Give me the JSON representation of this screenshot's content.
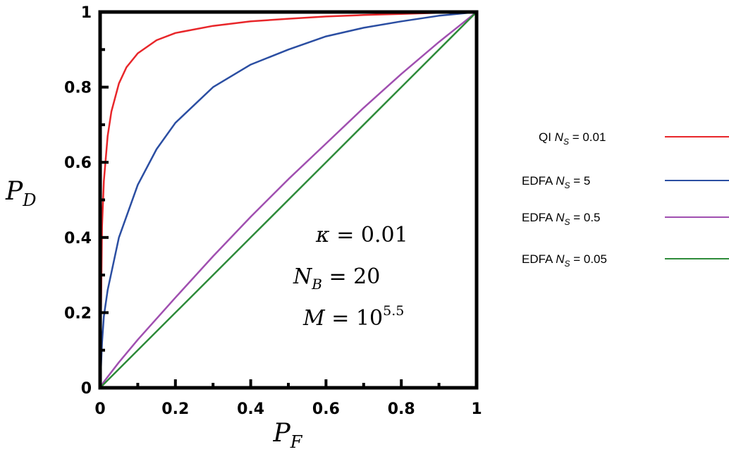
{
  "chart_data": {
    "type": "line",
    "xlabel": "P",
    "xlabel_sub": "F",
    "ylabel": "P",
    "ylabel_sub": "D",
    "xlim": [
      0,
      1
    ],
    "ylim": [
      0,
      1
    ],
    "x_ticks": [
      "0",
      "0.2",
      "0.4",
      "0.6",
      "0.8",
      "1"
    ],
    "y_ticks": [
      "0",
      "0.2",
      "0.4",
      "0.6",
      "0.8",
      "1"
    ],
    "grid": false,
    "legend_position": "right, outside plot",
    "annotations": [
      {
        "symbol": "κ",
        "relation": " = ",
        "value": "0.01"
      },
      {
        "symbol": "N",
        "sub": "B",
        "relation": " = ",
        "value": "20"
      },
      {
        "symbol": "M",
        "relation": " = ",
        "value": "10",
        "sup": "5.5"
      }
    ],
    "series": [
      {
        "legend_prefix": "QI ",
        "legend_symbol": "N",
        "legend_sub": "S",
        "legend_value": " = 0.01",
        "color": "#e8262a",
        "x": [
          0,
          0.005,
          0.01,
          0.02,
          0.03,
          0.05,
          0.07,
          0.1,
          0.15,
          0.2,
          0.3,
          0.4,
          0.5,
          0.6,
          0.7,
          0.8,
          0.9,
          1
        ],
        "y": [
          0,
          0.43,
          0.55,
          0.67,
          0.735,
          0.81,
          0.853,
          0.89,
          0.925,
          0.944,
          0.963,
          0.975,
          0.982,
          0.988,
          0.992,
          0.995,
          0.998,
          1
        ]
      },
      {
        "legend_prefix": "EDFA ",
        "legend_symbol": "N",
        "legend_sub": "S",
        "legend_value": " = 5",
        "color": "#2b4ea2",
        "x": [
          0,
          0.005,
          0.01,
          0.02,
          0.05,
          0.1,
          0.15,
          0.2,
          0.3,
          0.4,
          0.5,
          0.6,
          0.7,
          0.8,
          0.9,
          1
        ],
        "y": [
          0,
          0.12,
          0.19,
          0.26,
          0.4,
          0.54,
          0.635,
          0.705,
          0.8,
          0.86,
          0.9,
          0.935,
          0.958,
          0.975,
          0.99,
          1
        ]
      },
      {
        "legend_prefix": "EDFA ",
        "legend_symbol": "N",
        "legend_sub": "S",
        "legend_value": " = 0.5",
        "color": "#a04fb0",
        "x": [
          0,
          0.01,
          0.05,
          0.1,
          0.2,
          0.3,
          0.4,
          0.5,
          0.6,
          0.7,
          0.8,
          0.9,
          1
        ],
        "y": [
          0,
          0.016,
          0.068,
          0.128,
          0.24,
          0.35,
          0.455,
          0.555,
          0.65,
          0.745,
          0.835,
          0.92,
          1
        ]
      },
      {
        "legend_prefix": "EDFA ",
        "legend_symbol": "N",
        "legend_sub": "S",
        "legend_value": " = 0.05",
        "color": "#2e8b3a",
        "x": [
          0,
          0.2,
          0.4,
          0.6,
          0.8,
          1
        ],
        "y": [
          0,
          0.2,
          0.4,
          0.6,
          0.8,
          1
        ]
      }
    ]
  }
}
